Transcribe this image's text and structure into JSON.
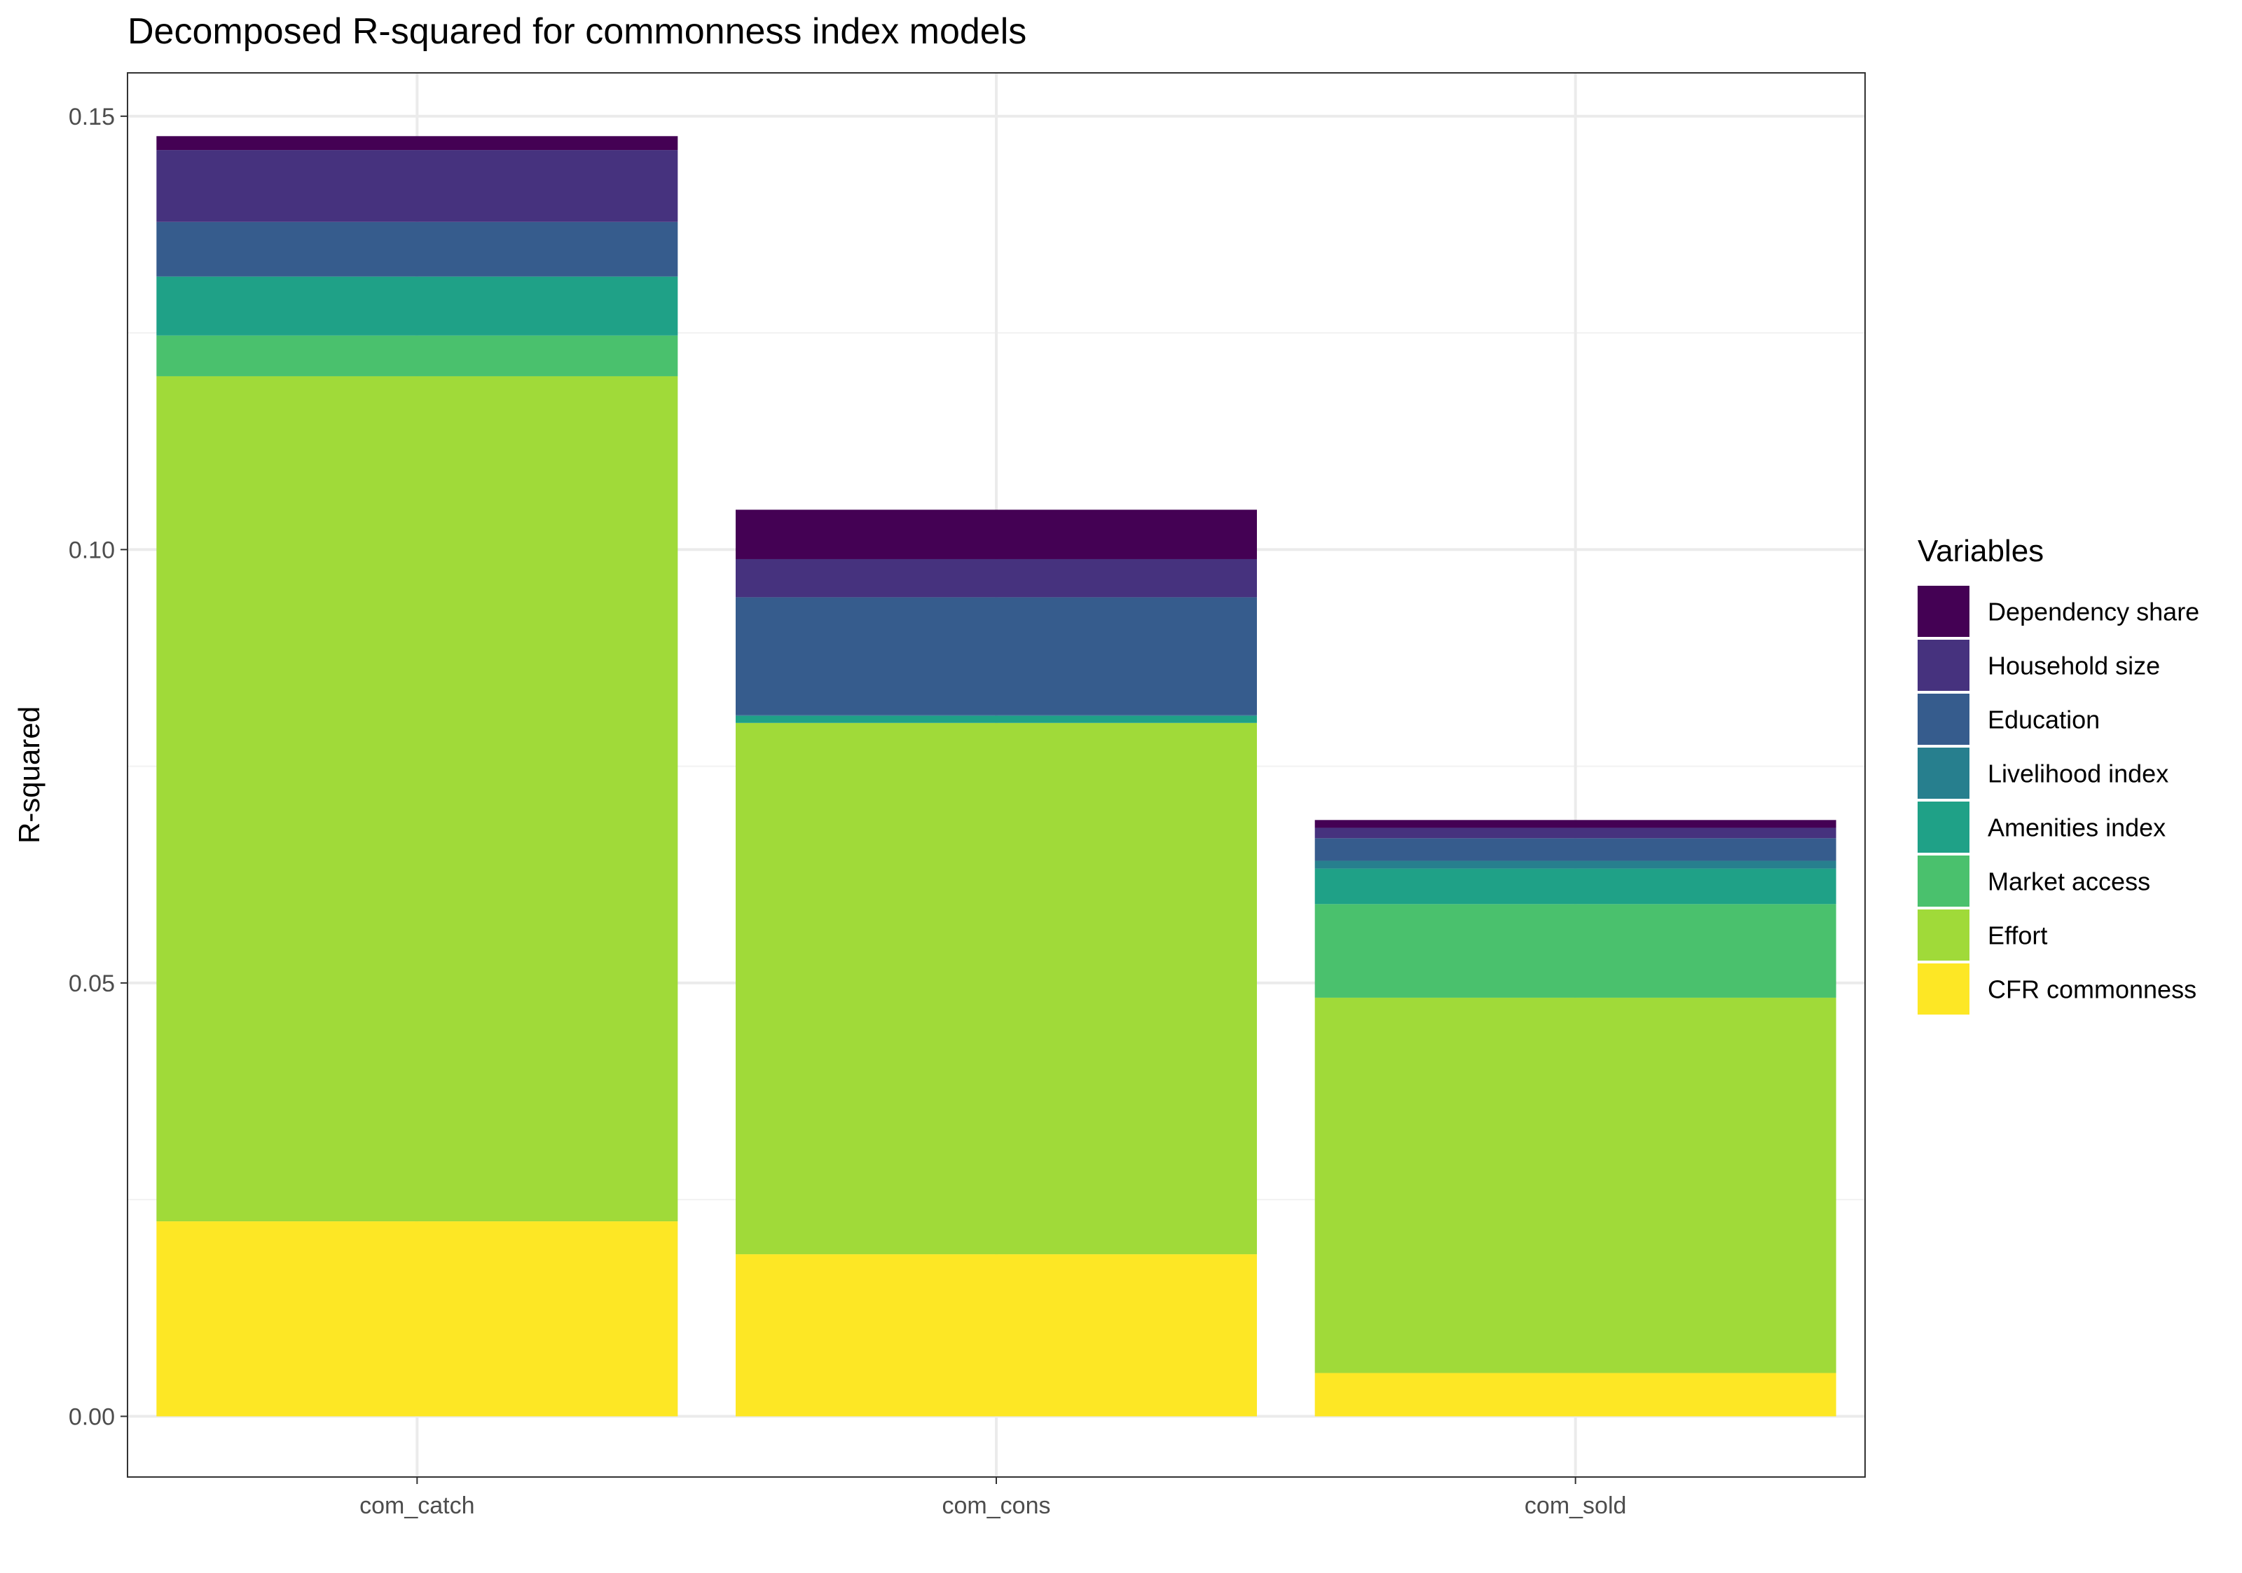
{
  "chart_data": {
    "type": "bar",
    "stacked": true,
    "title": "Decomposed R-squared for commonness index models",
    "xlabel": "",
    "ylabel": "R-squared",
    "categories": [
      "com_catch",
      "com_cons",
      "com_sold"
    ],
    "ylim": [
      -0.007,
      0.155
    ],
    "y_ticks": [
      0.0,
      0.05,
      0.1,
      0.15
    ],
    "y_tick_labels": [
      "0.00",
      "0.05",
      "0.10",
      "0.15"
    ],
    "grid": true,
    "legend_position": "right",
    "legend_title": "Variables",
    "series": [
      {
        "name": "CFR commonness",
        "color": "#FDE725",
        "values": [
          0.0225,
          0.0187,
          0.005
        ]
      },
      {
        "name": "Effort",
        "color": "#A0DA39",
        "values": [
          0.0975,
          0.0613,
          0.0433
        ]
      },
      {
        "name": "Market access",
        "color": "#4AC16D",
        "values": [
          0.0047,
          0.0,
          0.0108
        ]
      },
      {
        "name": "Amenities index",
        "color": "#1FA187",
        "values": [
          0.0068,
          0.0008,
          0.0041
        ]
      },
      {
        "name": "Livelihood index",
        "color": "#277F8E",
        "values": [
          0.0,
          0.0001,
          0.0009
        ]
      },
      {
        "name": "Education",
        "color": "#365C8D",
        "values": [
          0.0063,
          0.0136,
          0.0026
        ]
      },
      {
        "name": "Household size",
        "color": "#46327E",
        "values": [
          0.0083,
          0.0044,
          0.0012
        ]
      },
      {
        "name": "Dependency share",
        "color": "#440154",
        "values": [
          0.0016,
          0.0057,
          0.0009
        ]
      }
    ]
  }
}
